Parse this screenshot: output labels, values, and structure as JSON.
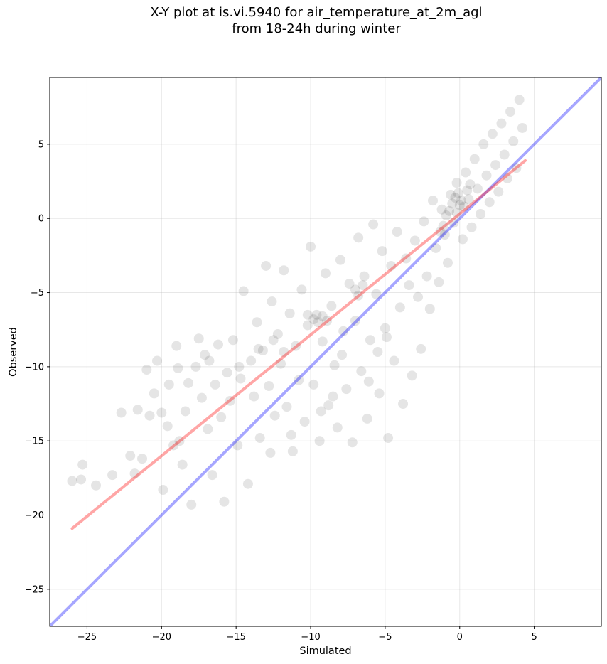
{
  "title_line1": "X-Y plot at is.vi.5940 for air_temperature_at_2m_agl",
  "title_line2": "from 18-24h during winter",
  "chart_data": {
    "type": "scatter",
    "xlabel": "Simulated",
    "ylabel": "Observed",
    "xlim": [
      -27.5,
      9.5
    ],
    "ylim": [
      -27.5,
      9.5
    ],
    "xticks": [
      -25,
      -20,
      -15,
      -10,
      -5,
      0,
      5
    ],
    "yticks": [
      -25,
      -20,
      -15,
      -10,
      -5,
      0,
      5
    ],
    "xtick_labels": [
      "−25",
      "−20",
      "−15",
      "−10",
      "−5",
      "0",
      "5"
    ],
    "ytick_labels": [
      "−25",
      "−20",
      "−15",
      "−10",
      "−5",
      "0",
      "5"
    ],
    "grid": true,
    "point_color": "#000000",
    "point_alpha": 0.1,
    "points": [
      [
        -26.0,
        -17.7
      ],
      [
        -25.4,
        -17.6
      ],
      [
        -25.3,
        -16.6
      ],
      [
        -24.4,
        -18.0
      ],
      [
        -23.3,
        -17.3
      ],
      [
        -22.7,
        -13.1
      ],
      [
        -22.1,
        -16.0
      ],
      [
        -21.8,
        -17.2
      ],
      [
        -21.3,
        -16.2
      ],
      [
        -21.0,
        -10.2
      ],
      [
        -21.6,
        -12.9
      ],
      [
        -20.8,
        -13.3
      ],
      [
        -20.5,
        -11.8
      ],
      [
        -20.3,
        -9.6
      ],
      [
        -20.0,
        -13.1
      ],
      [
        -19.9,
        -18.3
      ],
      [
        -19.6,
        -14.0
      ],
      [
        -19.5,
        -11.2
      ],
      [
        -19.0,
        -8.6
      ],
      [
        -18.9,
        -10.1
      ],
      [
        -18.6,
        -16.6
      ],
      [
        -18.4,
        -13.0
      ],
      [
        -18.2,
        -11.1
      ],
      [
        -18.0,
        -19.3
      ],
      [
        -17.7,
        -10.0
      ],
      [
        -17.3,
        -12.1
      ],
      [
        -17.1,
        -9.2
      ],
      [
        -16.9,
        -14.2
      ],
      [
        -16.6,
        -17.3
      ],
      [
        -16.4,
        -11.2
      ],
      [
        -16.2,
        -8.5
      ],
      [
        -16.0,
        -13.4
      ],
      [
        -15.8,
        -19.1
      ],
      [
        -15.6,
        -10.4
      ],
      [
        -15.4,
        -12.3
      ],
      [
        -15.2,
        -8.2
      ],
      [
        -14.9,
        -15.3
      ],
      [
        -14.7,
        -10.8
      ],
      [
        -14.5,
        -4.9
      ],
      [
        -14.2,
        -17.9
      ],
      [
        -14.0,
        -9.6
      ],
      [
        -13.8,
        -12.0
      ],
      [
        -13.6,
        -7.0
      ],
      [
        -13.4,
        -14.8
      ],
      [
        -13.2,
        -8.9
      ],
      [
        -13.0,
        -3.2
      ],
      [
        -12.8,
        -11.3
      ],
      [
        -12.6,
        -5.6
      ],
      [
        -12.4,
        -13.3
      ],
      [
        -12.2,
        -7.8
      ],
      [
        -12.0,
        -9.8
      ],
      [
        -11.8,
        -3.5
      ],
      [
        -11.6,
        -12.7
      ],
      [
        -11.4,
        -6.4
      ],
      [
        -11.2,
        -15.7
      ],
      [
        -11.0,
        -8.6
      ],
      [
        -10.8,
        -10.9
      ],
      [
        -10.6,
        -4.8
      ],
      [
        -10.4,
        -13.7
      ],
      [
        -10.2,
        -7.2
      ],
      [
        -10.0,
        -1.9
      ],
      [
        -9.8,
        -11.2
      ],
      [
        -9.6,
        -6.5
      ],
      [
        -9.4,
        -15.0
      ],
      [
        -9.2,
        -8.3
      ],
      [
        -9.0,
        -3.7
      ],
      [
        -8.8,
        -12.6
      ],
      [
        -8.6,
        -5.9
      ],
      [
        -8.4,
        -9.9
      ],
      [
        -8.2,
        -14.1
      ],
      [
        -8.0,
        -2.8
      ],
      [
        -7.8,
        -7.6
      ],
      [
        -7.6,
        -11.5
      ],
      [
        -7.4,
        -4.4
      ],
      [
        -7.2,
        -15.1
      ],
      [
        -7.0,
        -6.9
      ],
      [
        -6.8,
        -1.3
      ],
      [
        -6.6,
        -10.3
      ],
      [
        -6.4,
        -3.9
      ],
      [
        -6.2,
        -13.5
      ],
      [
        -6.0,
        -8.2
      ],
      [
        -5.8,
        -0.4
      ],
      [
        -5.6,
        -5.1
      ],
      [
        -5.4,
        -11.8
      ],
      [
        -5.2,
        -2.2
      ],
      [
        -5.0,
        -7.4
      ],
      [
        -4.8,
        -14.8
      ],
      [
        -4.6,
        -3.2
      ],
      [
        -4.4,
        -9.6
      ],
      [
        -4.2,
        -0.9
      ],
      [
        -4.0,
        -6.0
      ],
      [
        -3.8,
        -12.5
      ],
      [
        -3.6,
        -2.7
      ],
      [
        -3.4,
        -4.5
      ],
      [
        -3.2,
        -10.6
      ],
      [
        -3.0,
        -1.5
      ],
      [
        -2.8,
        -5.3
      ],
      [
        -2.6,
        -8.8
      ],
      [
        -2.4,
        -0.2
      ],
      [
        -2.2,
        -3.9
      ],
      [
        -2.0,
        -6.1
      ],
      [
        -1.8,
        1.2
      ],
      [
        -1.6,
        -2.0
      ],
      [
        -1.4,
        -4.3
      ],
      [
        -1.2,
        0.6
      ],
      [
        -1.0,
        -1.1
      ],
      [
        -0.8,
        -3.0
      ],
      [
        -0.6,
        1.6
      ],
      [
        -0.4,
        -0.3
      ],
      [
        -0.2,
        2.4
      ],
      [
        0.0,
        0.9
      ],
      [
        0.2,
        -1.4
      ],
      [
        0.4,
        3.1
      ],
      [
        0.6,
        1.3
      ],
      [
        0.8,
        -0.6
      ],
      [
        1.0,
        4.0
      ],
      [
        1.2,
        2.0
      ],
      [
        1.4,
        0.3
      ],
      [
        1.6,
        5.0
      ],
      [
        1.8,
        2.9
      ],
      [
        2.0,
        1.1
      ],
      [
        2.2,
        5.7
      ],
      [
        2.4,
        3.6
      ],
      [
        2.6,
        1.8
      ],
      [
        2.8,
        6.4
      ],
      [
        3.0,
        4.3
      ],
      [
        3.2,
        2.7
      ],
      [
        3.4,
        7.2
      ],
      [
        3.6,
        5.2
      ],
      [
        3.8,
        3.4
      ],
      [
        4.0,
        8.0
      ],
      [
        4.2,
        6.1
      ],
      [
        -0.5,
        1.0
      ],
      [
        -0.3,
        1.4
      ],
      [
        -0.1,
        1.7
      ],
      [
        0.1,
        1.2
      ],
      [
        0.3,
        0.8
      ],
      [
        -0.7,
        0.5
      ],
      [
        -0.9,
        0.2
      ],
      [
        -1.1,
        -0.5
      ],
      [
        -1.3,
        -0.9
      ],
      [
        0.5,
        1.9
      ],
      [
        0.7,
        2.3
      ],
      [
        -0.2,
        0.4
      ],
      [
        -9.8,
        -6.8
      ],
      [
        -9.5,
        -7.0
      ],
      [
        -9.2,
        -6.6
      ],
      [
        -8.9,
        -6.9
      ],
      [
        -10.2,
        -6.5
      ],
      [
        -7.0,
        -4.8
      ],
      [
        -6.8,
        -5.2
      ],
      [
        -6.5,
        -4.5
      ],
      [
        -17.5,
        -8.1
      ],
      [
        -18.8,
        -15.0
      ],
      [
        -19.2,
        -15.3
      ],
      [
        -12.5,
        -8.2
      ],
      [
        -11.8,
        -9.0
      ],
      [
        -13.5,
        -8.8
      ],
      [
        -14.8,
        -10.0
      ],
      [
        -16.8,
        -9.6
      ],
      [
        -8.5,
        -12.0
      ],
      [
        -9.3,
        -13.0
      ],
      [
        -7.9,
        -9.2
      ],
      [
        -6.1,
        -11.0
      ],
      [
        -5.5,
        -9.0
      ],
      [
        -4.9,
        -8.0
      ],
      [
        -11.3,
        -14.6
      ],
      [
        -12.7,
        -15.8
      ]
    ],
    "regression_line": {
      "color": "#ff0000",
      "alpha": 0.35,
      "x": [
        -26.0,
        4.4
      ],
      "y": [
        -20.9,
        3.9
      ]
    },
    "identity_line": {
      "color": "#0000ff",
      "alpha": 0.35,
      "x": [
        -27.5,
        9.5
      ],
      "y": [
        -27.5,
        9.5
      ]
    }
  }
}
